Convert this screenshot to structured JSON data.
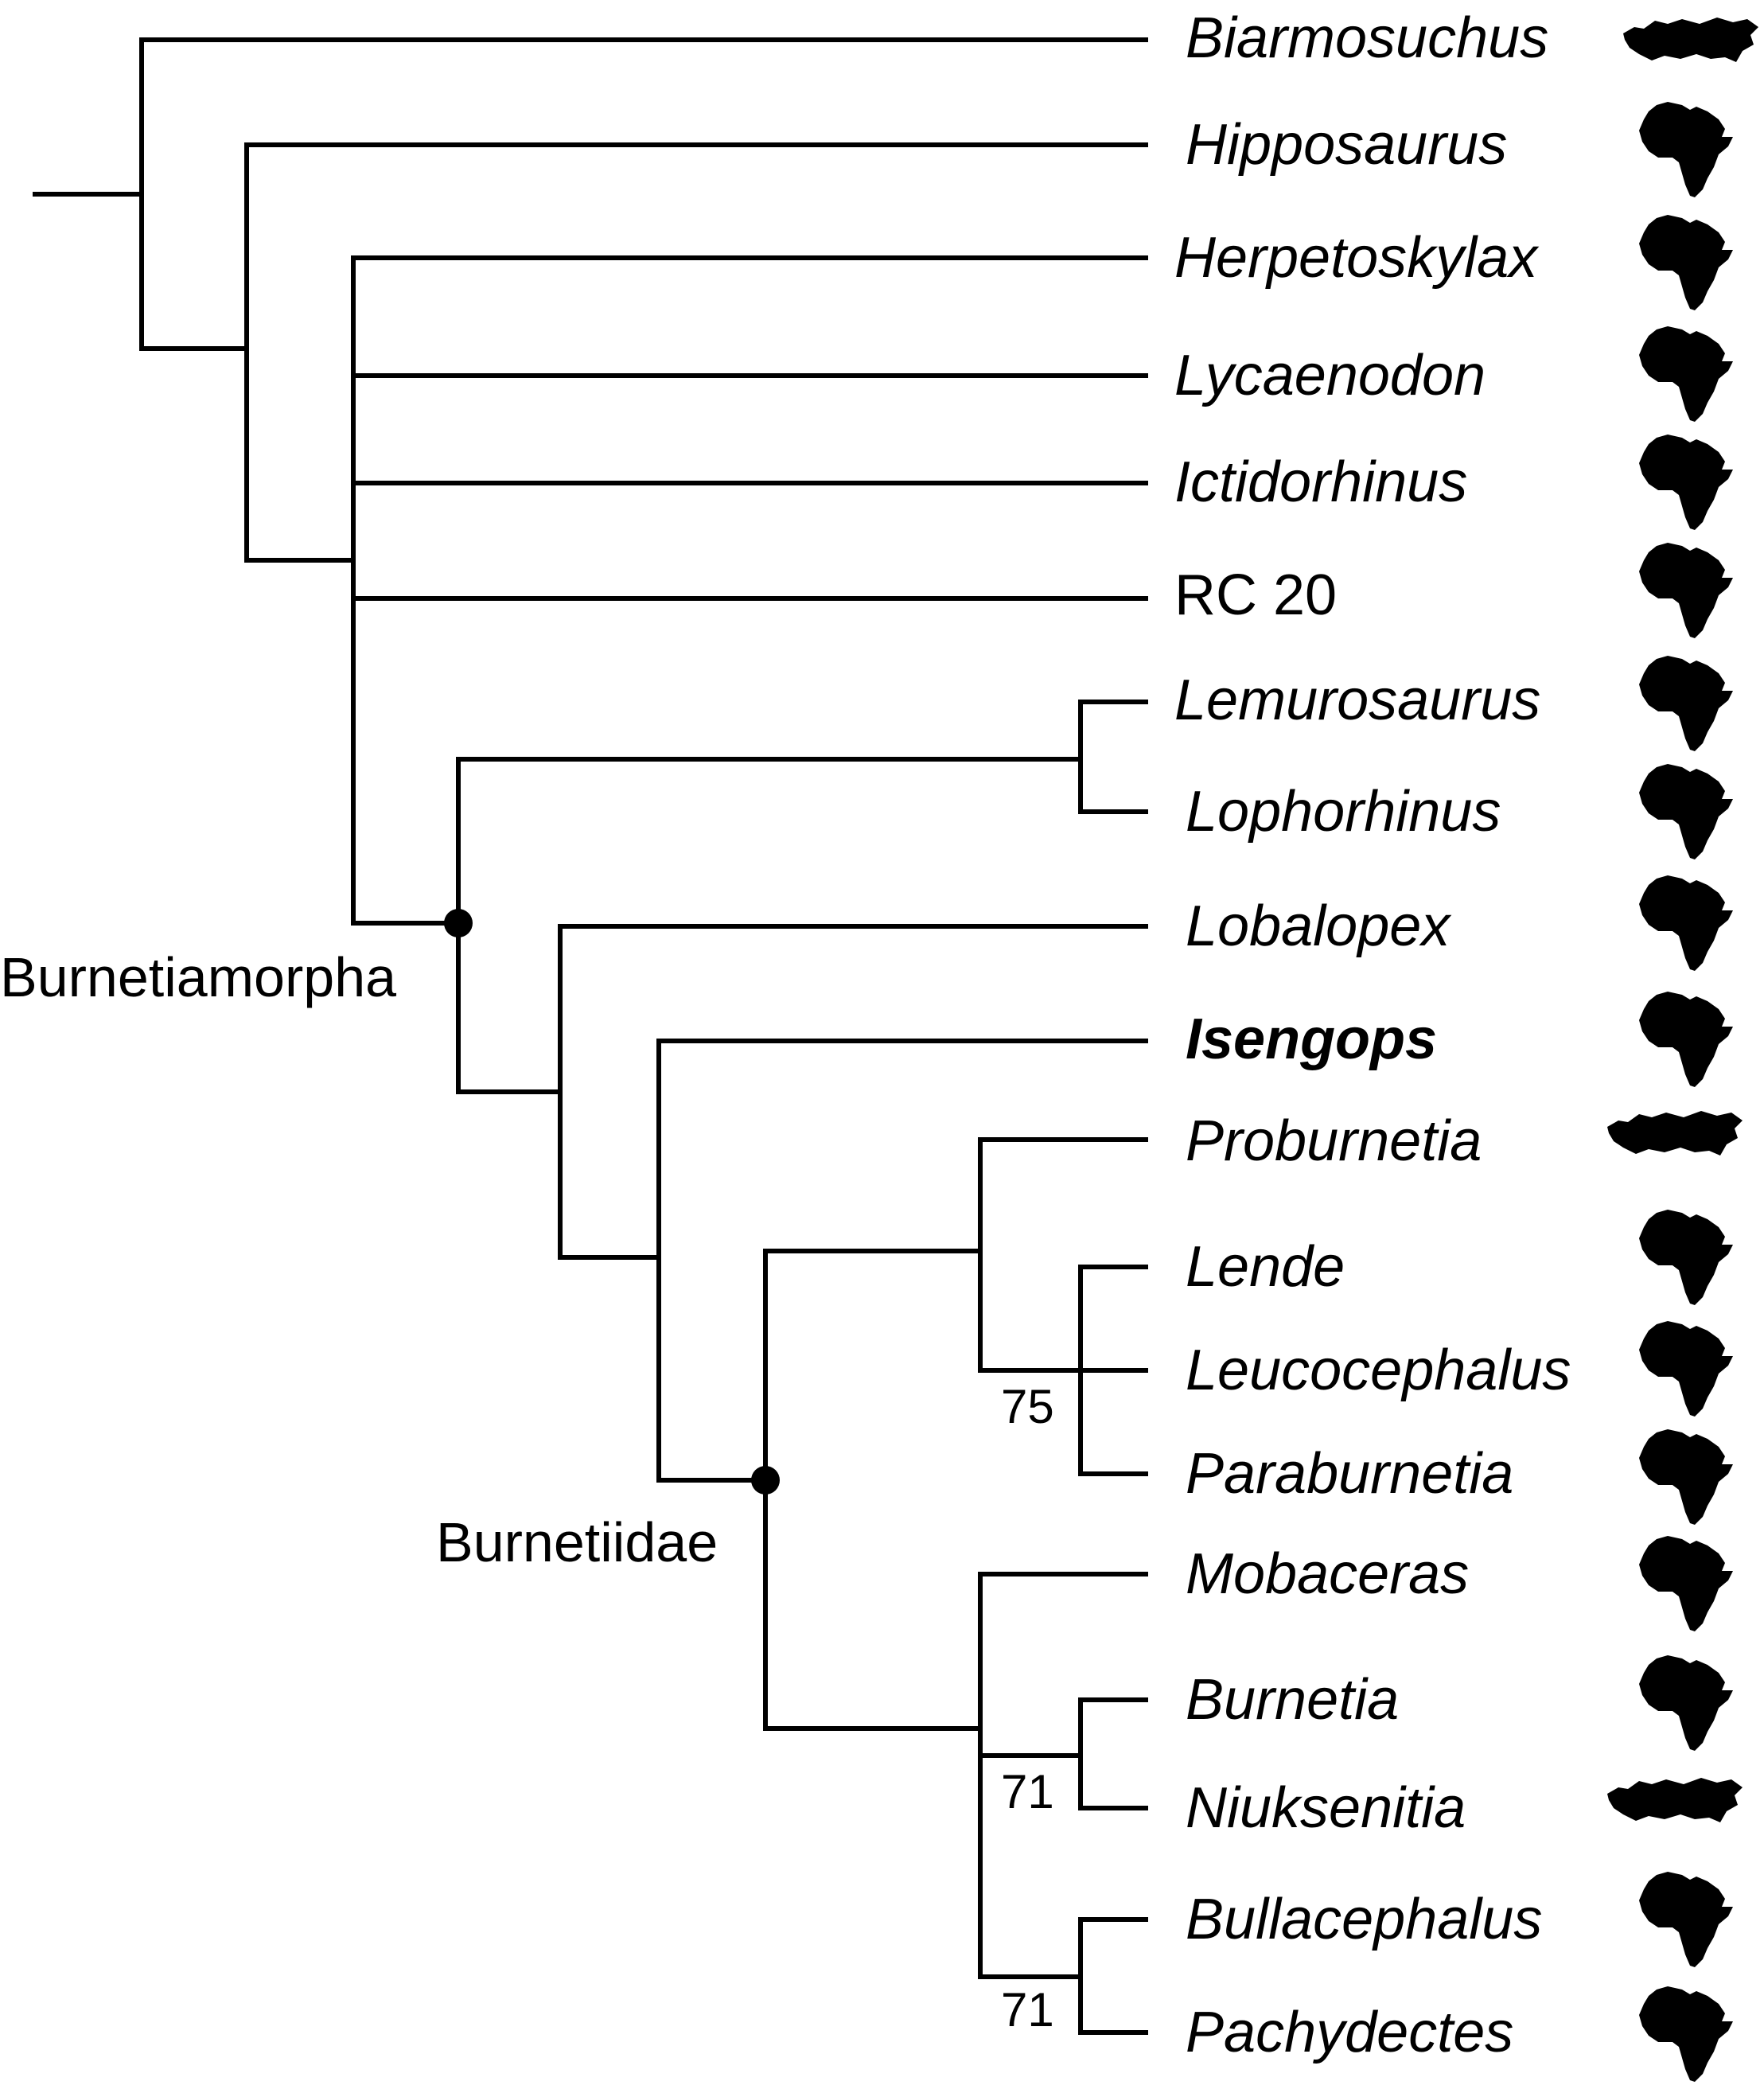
{
  "taxa": [
    {
      "name": "Biarmosuchus",
      "region": "russia-map-icon"
    },
    {
      "name": "Hipposaurus",
      "region": "africa-map-icon"
    },
    {
      "name": "Herpetoskylax",
      "region": "africa-map-icon"
    },
    {
      "name": "Lycaenodon",
      "region": "africa-map-icon"
    },
    {
      "name": "Ictidorhinus",
      "region": "africa-map-icon"
    },
    {
      "name": "RC 20",
      "region": "africa-map-icon"
    },
    {
      "name": "Lemurosaurus",
      "region": "africa-map-icon"
    },
    {
      "name": "Lophorhinus",
      "region": "africa-map-icon"
    },
    {
      "name": "Lobalopex",
      "region": "africa-map-icon"
    },
    {
      "name": "Isengops",
      "region": "africa-map-icon"
    },
    {
      "name": "Proburnetia",
      "region": "russia-map-icon"
    },
    {
      "name": "Lende",
      "region": "africa-map-icon"
    },
    {
      "name": "Leucocephalus",
      "region": "africa-map-icon"
    },
    {
      "name": "Paraburnetia",
      "region": "africa-map-icon"
    },
    {
      "name": "Mobaceras",
      "region": "africa-map-icon"
    },
    {
      "name": "Burnetia",
      "region": "africa-map-icon"
    },
    {
      "name": "Niuksenitia",
      "region": "russia-map-icon"
    },
    {
      "name": "Bullacephalus",
      "region": "africa-map-icon"
    },
    {
      "name": "Pachydectes",
      "region": "africa-map-icon"
    }
  ],
  "clades": {
    "burnetiamorpha": "Burnetiamorpha",
    "burnetiidae": "Burnetiidae"
  },
  "support": {
    "lende_group": "75",
    "burnetia_niuksenitia": "71",
    "bullacephalus_pachydectes": "71"
  },
  "colors": {
    "line": "#000000",
    "background": "#ffffff"
  }
}
